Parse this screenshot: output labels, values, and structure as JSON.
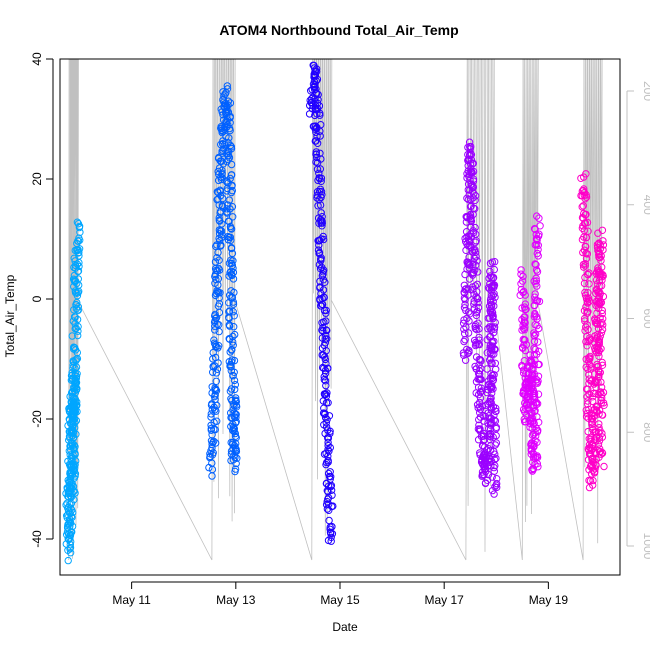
{
  "chart_data": {
    "type": "scatter",
    "title": "ATOM4 Northbound Total_Air_Temp",
    "xlabel": "Date",
    "ylabel": "Total_Air_Temp",
    "x_ticks": [
      {
        "date": "2018-05-11",
        "label": "May 11"
      },
      {
        "date": "2018-05-13",
        "label": "May 13"
      },
      {
        "date": "2018-05-15",
        "label": "May 15"
      },
      {
        "date": "2018-05-17",
        "label": "May 17"
      },
      {
        "date": "2018-05-19",
        "label": "May 19"
      }
    ],
    "xlim": [
      "2018-05-09T15:00",
      "2018-05-20T09:00"
    ],
    "ylim": [
      -46,
      40
    ],
    "y_ticks": [
      {
        "value": -40,
        "label": "-40"
      },
      {
        "value": -20,
        "label": "-20"
      },
      {
        "value": 0,
        "label": "0"
      },
      {
        "value": 20,
        "label": "20"
      },
      {
        "value": 40,
        "label": "40"
      }
    ],
    "right_axis": {
      "color": "#c0c0c0",
      "reversed": true,
      "ticks": [
        {
          "value": 200,
          "label": "200"
        },
        {
          "value": 400,
          "label": "400"
        },
        {
          "value": 600,
          "label": "600"
        },
        {
          "value": 800,
          "label": "800"
        },
        {
          "value": 1000,
          "label": "1000"
        }
      ],
      "line_color": "#c0c0c0"
    },
    "marker": "open-circle",
    "grid": false,
    "series": [
      {
        "color": "#00a6ff",
        "x_start": "2018-05-09T19:00",
        "x_end": "2018-05-09T23:00",
        "points": [
          [
            "2018-05-09T19:00",
            -30
          ],
          [
            "2018-05-09T19:20",
            -42
          ],
          [
            "2018-05-09T19:40",
            -36
          ],
          [
            "2018-05-09T20:00",
            -22
          ],
          [
            "2018-05-09T20:20",
            -17
          ],
          [
            "2018-05-09T20:40",
            -28
          ],
          [
            "2018-05-09T21:00",
            -32
          ],
          [
            "2018-05-09T21:20",
            -12
          ],
          [
            "2018-05-09T21:40",
            -20
          ],
          [
            "2018-05-09T22:00",
            -5
          ],
          [
            "2018-05-09T22:20",
            2
          ],
          [
            "2018-05-09T22:40",
            8
          ],
          [
            "2018-05-09T23:00",
            12
          ]
        ]
      },
      {
        "color": "#0060ff",
        "x_start": "2018-05-12T13:00",
        "x_end": "2018-05-12T23:30",
        "points": [
          [
            "2018-05-12T13:00",
            -28
          ],
          [
            "2018-05-12T14:00",
            -20
          ],
          [
            "2018-05-12T15:00",
            -5
          ],
          [
            "2018-05-12T16:00",
            8
          ],
          [
            "2018-05-12T17:00",
            20
          ],
          [
            "2018-05-12T18:00",
            28
          ],
          [
            "2018-05-12T19:00",
            32
          ],
          [
            "2018-05-12T20:00",
            34
          ],
          [
            "2018-05-12T21:00",
            20
          ],
          [
            "2018-05-12T22:00",
            0
          ],
          [
            "2018-05-12T23:00",
            -27
          ],
          [
            "2018-05-12T23:30",
            -17
          ]
        ]
      },
      {
        "color": "#2000ff",
        "x_start": "2018-05-14T11:00",
        "x_end": "2018-05-14T20:00",
        "points": [
          [
            "2018-05-14T11:00",
            30
          ],
          [
            "2018-05-14T12:00",
            38
          ],
          [
            "2018-05-14T13:00",
            36
          ],
          [
            "2018-05-14T14:00",
            25
          ],
          [
            "2018-05-14T15:00",
            10
          ],
          [
            "2018-05-14T16:00",
            0
          ],
          [
            "2018-05-14T17:00",
            -10
          ],
          [
            "2018-05-14T18:00",
            -22
          ],
          [
            "2018-05-14T19:00",
            -33
          ],
          [
            "2018-05-14T20:00",
            -40
          ]
        ]
      },
      {
        "color": "#9b00ff",
        "x_start": "2018-05-17T10:00",
        "x_end": "2018-05-17T23:00",
        "points": [
          [
            "2018-05-17T10:00",
            -10
          ],
          [
            "2018-05-17T11:00",
            10
          ],
          [
            "2018-05-17T12:00",
            25
          ],
          [
            "2018-05-17T13:00",
            18
          ],
          [
            "2018-05-17T14:00",
            5
          ],
          [
            "2018-05-17T15:00",
            -5
          ],
          [
            "2018-05-17T16:00",
            -15
          ],
          [
            "2018-05-17T17:00",
            -22
          ],
          [
            "2018-05-17T18:00",
            -28
          ],
          [
            "2018-05-17T19:00",
            -30
          ],
          [
            "2018-05-17T20:00",
            -25
          ],
          [
            "2018-05-17T21:00",
            -10
          ],
          [
            "2018-05-17T22:00",
            5
          ],
          [
            "2018-05-17T23:00",
            -33
          ]
        ]
      },
      {
        "color": "#e000ff",
        "x_start": "2018-05-18T12:00",
        "x_end": "2018-05-18T19:00",
        "points": [
          [
            "2018-05-18T12:00",
            3
          ],
          [
            "2018-05-18T13:00",
            -8
          ],
          [
            "2018-05-18T14:00",
            -20
          ],
          [
            "2018-05-18T15:00",
            -14
          ],
          [
            "2018-05-18T16:00",
            -10
          ],
          [
            "2018-05-18T17:00",
            -25
          ],
          [
            "2018-05-18T18:00",
            -28
          ],
          [
            "2018-05-18T19:00",
            14
          ]
        ]
      },
      {
        "color": "#ff00c8",
        "x_start": "2018-05-19T16:00",
        "x_end": "2018-05-20T00:30",
        "points": [
          [
            "2018-05-19T16:00",
            20
          ],
          [
            "2018-05-19T17:00",
            10
          ],
          [
            "2018-05-19T18:00",
            -5
          ],
          [
            "2018-05-19T19:00",
            -20
          ],
          [
            "2018-05-19T20:00",
            -30
          ],
          [
            "2018-05-19T21:00",
            -25
          ],
          [
            "2018-05-19T22:00",
            -10
          ],
          [
            "2018-05-19T23:00",
            0
          ],
          [
            "2018-05-20T00:00",
            10
          ],
          [
            "2018-05-20T00:30",
            -28
          ]
        ]
      }
    ]
  }
}
